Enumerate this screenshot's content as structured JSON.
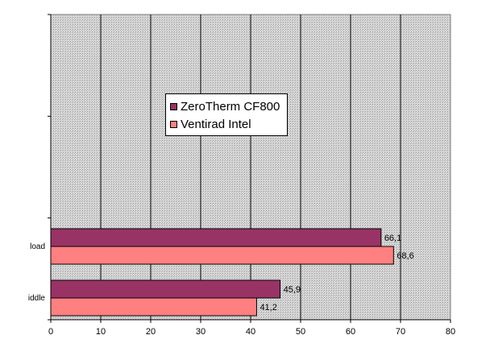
{
  "chart_data": {
    "type": "bar",
    "orientation": "horizontal",
    "categories": [
      "load",
      "iddle"
    ],
    "series": [
      {
        "name": "ZeroTherm CF800",
        "values": [
          66.1,
          45.9
        ],
        "labels": [
          "66,1",
          "45,9"
        ],
        "color": "#993366"
      },
      {
        "name": "Ventirad Intel",
        "values": [
          68.6,
          41.2
        ],
        "labels": [
          "68,6",
          "41,2"
        ],
        "color": "#ff8080"
      }
    ],
    "xlim": [
      0,
      80
    ],
    "x_ticks": [
      0,
      10,
      20,
      30,
      40,
      50,
      60,
      70,
      80
    ],
    "x_tick_labels": [
      "0",
      "10",
      "20",
      "30",
      "40",
      "50",
      "60",
      "70",
      "80"
    ],
    "grid": true,
    "plot_background": "#c0c0c0",
    "legend_position": "upper-middle",
    "title": "",
    "xlabel": "",
    "ylabel": ""
  }
}
